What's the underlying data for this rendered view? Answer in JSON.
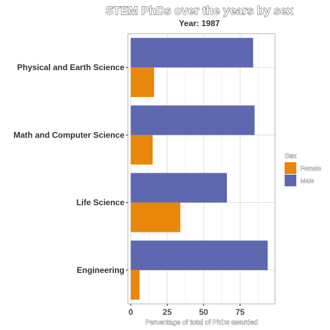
{
  "chart_data": {
    "type": "bar",
    "orientation": "horizontal",
    "title": "STEM PhDs over the years by sex",
    "subtitle": "Year: 1987",
    "xlabel": "Percentage of total of PhDs awarded",
    "ylabel": "",
    "categories": [
      "Physical and Earth Science",
      "Math and Computer Science",
      "Life Science",
      "Engineering"
    ],
    "series": [
      {
        "name": "Male",
        "color": "#5E68B0",
        "values": [
          84,
          85,
          66,
          94
        ]
      },
      {
        "name": "Female",
        "color": "#E8870A",
        "values": [
          16,
          15,
          34,
          6
        ]
      }
    ],
    "xlim": [
      -2,
      99
    ],
    "xticks": [
      0,
      25,
      50,
      75
    ],
    "grid": true,
    "legend": {
      "title": "Sex",
      "placement": "right",
      "order": [
        "Female",
        "Male"
      ]
    }
  }
}
